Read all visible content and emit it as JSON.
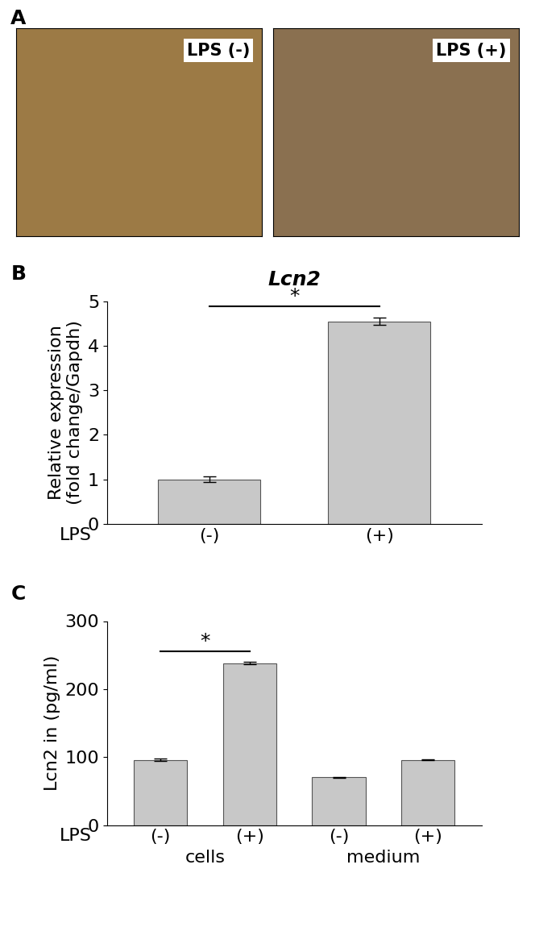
{
  "panel_labels": [
    "A",
    "B",
    "C"
  ],
  "images": {
    "labels": [
      "LPS (-)",
      "LPS (+)"
    ]
  },
  "chart_data": [
    {
      "type": "bar",
      "title": "Lcn2",
      "ylabel": "Relative expression\n(fold change/Gapdh)",
      "xlabel": "LPS",
      "categories": [
        "(-)",
        "(+)"
      ],
      "values": [
        1.0,
        4.55
      ],
      "errors": [
        0.07,
        0.08
      ],
      "color": "#c8c8c8",
      "ylim": [
        0,
        5
      ],
      "yticks": [
        0,
        1,
        2,
        3,
        4,
        5
      ],
      "grid": false,
      "annotations": [
        {
          "text": "*",
          "between": [
            0,
            1
          ]
        }
      ]
    },
    {
      "type": "bar",
      "ylabel": "Lcn2 in (pg/ml)",
      "xlabel": "LPS",
      "categories": [
        "(-)",
        "(+)",
        "(-)",
        "(+)"
      ],
      "values": [
        96,
        238,
        70,
        96
      ],
      "errors": [
        1.5,
        2,
        1,
        1
      ],
      "color": "#c8c8c8",
      "ylim": [
        0,
        300
      ],
      "yticks": [
        0,
        100,
        200,
        300
      ],
      "grid": false,
      "groups": [
        {
          "name": "cells",
          "span": [
            0,
            1
          ]
        },
        {
          "name": "medium",
          "span": [
            2,
            3
          ]
        }
      ],
      "annotations": [
        {
          "text": "*",
          "between": [
            0,
            1
          ]
        }
      ]
    }
  ]
}
